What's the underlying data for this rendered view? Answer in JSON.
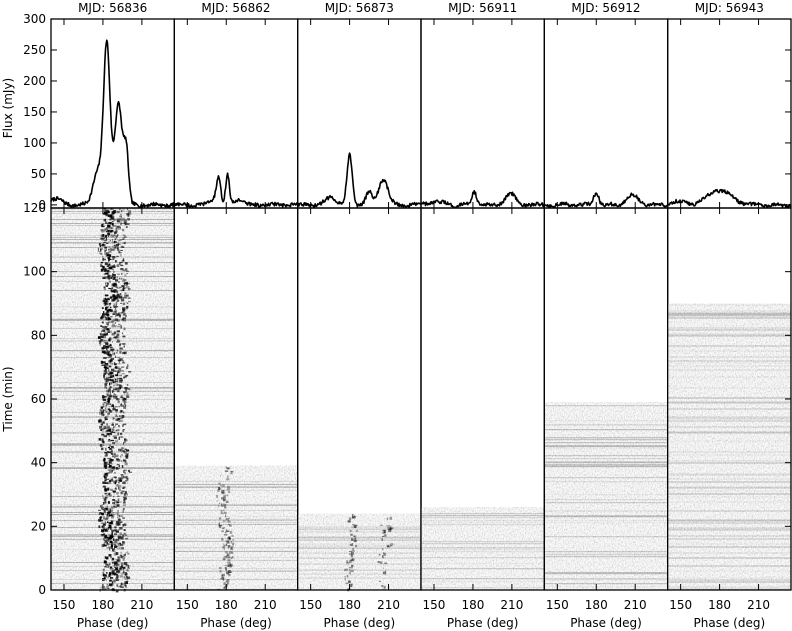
{
  "chart_data": {
    "type": "line",
    "panels": [
      {
        "title": "MJD: 56836",
        "minutes": 120,
        "peaks": [
          [
            183,
            2.5,
            255
          ],
          [
            192,
            3.0,
            165
          ],
          [
            198,
            1.8,
            80
          ],
          [
            176,
            3.5,
            55
          ],
          [
            143,
            5.0,
            10
          ]
        ],
        "stripe": [
          [
            183,
            5,
            1.0
          ],
          [
            193,
            5,
            0.7
          ]
        ]
      },
      {
        "title": "MJD: 56862",
        "minutes": 39,
        "peaks": [
          [
            174,
            1.7,
            42
          ],
          [
            181,
            1.4,
            48
          ],
          [
            190,
            3.0,
            10
          ],
          [
            170,
            3.0,
            8
          ]
        ],
        "stripe": [
          [
            177,
            3,
            0.25
          ],
          [
            181,
            2,
            0.25
          ]
        ]
      },
      {
        "title": "MJD: 56873",
        "minutes": 24,
        "peaks": [
          [
            180,
            2.0,
            80
          ],
          [
            195,
            2.5,
            20
          ],
          [
            206,
            3.5,
            42
          ],
          [
            166,
            4.0,
            13
          ]
        ],
        "stripe": [
          [
            180,
            3,
            0.35
          ],
          [
            206,
            4,
            0.25
          ]
        ]
      },
      {
        "title": "MJD: 56911",
        "minutes": 26,
        "peaks": [
          [
            181,
            1.8,
            22
          ],
          [
            209,
            4.0,
            18
          ],
          [
            152,
            5.0,
            5
          ]
        ],
        "stripe": []
      },
      {
        "title": "MJD: 56912",
        "minutes": 59,
        "peaks": [
          [
            180,
            2.0,
            20
          ],
          [
            208,
            4.5,
            15
          ]
        ],
        "stripe": []
      },
      {
        "title": "MJD: 56943",
        "minutes": 90,
        "peaks": [
          [
            180,
            9.0,
            24
          ],
          [
            147,
            6.0,
            6
          ]
        ],
        "stripe": []
      }
    ],
    "phase_range": [
      140,
      235
    ],
    "phase_ticks": [
      150,
      180,
      210
    ],
    "flux_range": [
      -5,
      300
    ],
    "flux_ticks": [
      0,
      50,
      100,
      150,
      200,
      250,
      300
    ],
    "time_range": [
      0,
      120
    ],
    "time_ticks": [
      0,
      20,
      40,
      60,
      80,
      100,
      120
    ],
    "ylabel_top": "Flux (mJy)",
    "ylabel_bottom": "Time (min)",
    "xlabel": "Phase (deg)"
  }
}
